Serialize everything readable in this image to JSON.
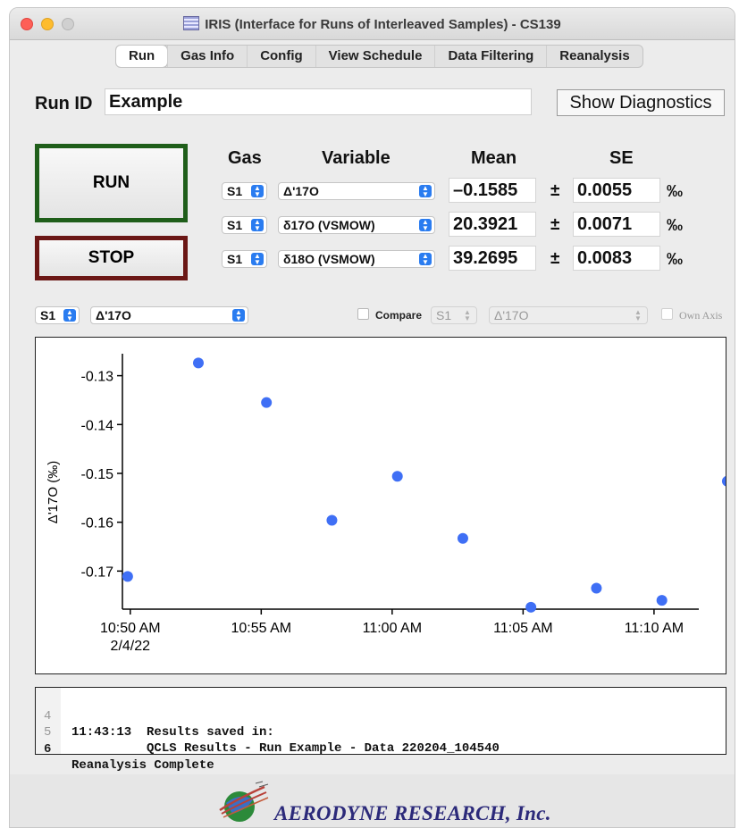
{
  "window": {
    "title": "IRIS (Interface for Runs of Interleaved Samples) - CS139"
  },
  "tabs": [
    {
      "label": "Run",
      "active": true
    },
    {
      "label": "Gas Info"
    },
    {
      "label": "Config"
    },
    {
      "label": "View Schedule"
    },
    {
      "label": "Data Filtering"
    },
    {
      "label": "Reanalysis"
    }
  ],
  "run_id": {
    "label": "Run ID",
    "value": "Example"
  },
  "diagnostics_button": "Show Diagnostics",
  "run_button": "RUN",
  "stop_button": "STOP",
  "table": {
    "headers": {
      "gas": "Gas",
      "variable": "Variable",
      "mean": "Mean",
      "se": "SE"
    },
    "pm": "±",
    "rows": [
      {
        "gas": "S1",
        "variable": "Δ'17O",
        "mean": "–0.1585",
        "se": "0.0055",
        "unit": "‰"
      },
      {
        "gas": "S1",
        "variable": "δ17O (VSMOW)",
        "mean": "20.3921",
        "se": "0.0071",
        "unit": "‰"
      },
      {
        "gas": "S1",
        "variable": "δ18O (VSMOW)",
        "mean": "39.2695",
        "se": "0.0083",
        "unit": "‰"
      }
    ]
  },
  "plot_controls": {
    "gas": "S1",
    "variable": "Δ'17O",
    "compare_label": "Compare",
    "compare_checked": false,
    "compare_gas": "S1",
    "compare_variable": "Δ'17O",
    "own_axis_label": "Own Axis",
    "own_axis_checked": false
  },
  "chart_data": {
    "type": "scatter",
    "ylabel": "Δ'17O (‰)",
    "xlabel": "",
    "color": "#3f6ff5",
    "x_tick_labels": [
      "10:50 AM\n2/4/22",
      "10:55 AM",
      "11:00 AM",
      "11:05 AM",
      "11:10 AM"
    ],
    "x_tick_minutes": [
      50,
      55,
      60,
      65,
      70
    ],
    "y_ticks": [
      -0.13,
      -0.14,
      -0.15,
      -0.16,
      -0.17
    ],
    "y_tick_labels": [
      "-0.13",
      "-0.14",
      "-0.15",
      "-0.16",
      "-0.17"
    ],
    "ylim": [
      -0.1778,
      -0.1255
    ],
    "xlim_minutes": [
      49.7,
      71.3
    ],
    "x_minutes": [
      49.9,
      52.6,
      55.2,
      57.7,
      60.2,
      62.7,
      65.3,
      67.8,
      70.3,
      72.8
    ],
    "y": [
      -0.1711,
      -0.1274,
      -0.1355,
      -0.1596,
      -0.1506,
      -0.1633,
      -0.1774,
      -0.1735,
      -0.176,
      -0.1516
    ]
  },
  "log": [
    {
      "num": "4",
      "text": "11:43:13  Results saved in:"
    },
    {
      "num": "5",
      "text": "          QCLS Results - Run Example - Data 220204_104540"
    },
    {
      "num": "6",
      "text": "Reanalysis Complete",
      "current": true
    }
  ],
  "footer": {
    "company": "AERODYNE RESEARCH, Inc."
  }
}
